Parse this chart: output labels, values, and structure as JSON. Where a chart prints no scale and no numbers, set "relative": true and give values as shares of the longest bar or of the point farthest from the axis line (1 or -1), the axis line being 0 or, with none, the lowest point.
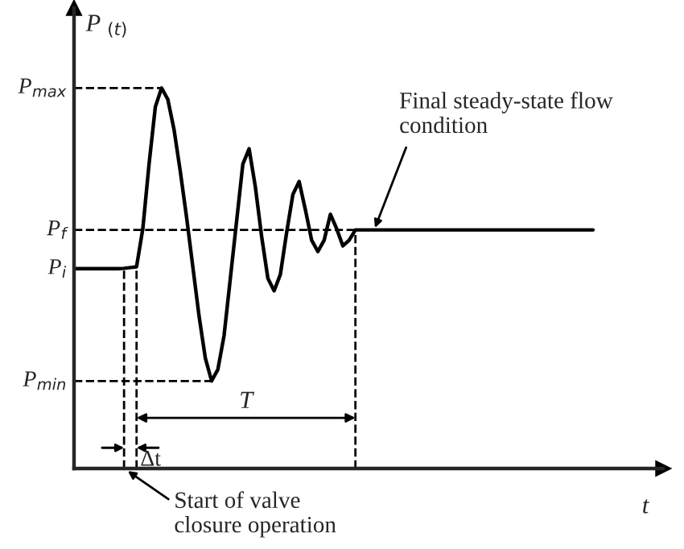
{
  "chart_data": {
    "type": "line",
    "relative": true,
    "xlabel": "t",
    "ylabel": "P $_{(t)}$",
    "grid": false,
    "legend": false,
    "marker": "none",
    "line_style": "solid",
    "categories": [
      null,
      null,
      null,
      null,
      null,
      null,
      null,
      null,
      null,
      null,
      null,
      null,
      null,
      null,
      null,
      null,
      null,
      null,
      null,
      null,
      null,
      null,
      null,
      null,
      null,
      null,
      null,
      null,
      null,
      null,
      null,
      null,
      null,
      null,
      null,
      null,
      null,
      null,
      null,
      null,
      null,
      null,
      null,
      null,
      null,
      null,
      null,
      null,
      null,
      null,
      null,
      null,
      null,
      null,
      null,
      null,
      null,
      null,
      null,
      null,
      null,
      null,
      null,
      null,
      null,
      null,
      null,
      null,
      null,
      null,
      null,
      null,
      null,
      null,
      null,
      null,
      null,
      null,
      null,
      null,
      null,
      null,
      null,
      null
    ],
    "series": [
      {
        "color": "#000000",
        "values": [
          0.525,
          0.525,
          0.525,
          0.525,
          0.525,
          0.525,
          0.525,
          0.525,
          0.526,
          0.528,
          0.53,
          0.63,
          0.8,
          0.95,
          1.0,
          0.97,
          0.89,
          0.78,
          0.66,
          0.53,
          0.4,
          0.29,
          0.23,
          0.26,
          0.35,
          0.5,
          0.65,
          0.8,
          0.84,
          0.74,
          0.61,
          0.5,
          0.467,
          0.51,
          0.62,
          0.72,
          0.754,
          0.68,
          0.6,
          0.57,
          0.6,
          0.668,
          0.63,
          0.585,
          0.6,
          0.627,
          0.627,
          0.627,
          0.627,
          0.627,
          0.627,
          0.627,
          0.627,
          0.627,
          0.627,
          0.627,
          0.627,
          0.627,
          0.627,
          0.627,
          0.627,
          0.627,
          0.627,
          0.627,
          0.627,
          0.627,
          0.627,
          0.627,
          0.627,
          0.627,
          0.627,
          0.627,
          0.627,
          0.627,
          0.627,
          0.627,
          0.627,
          0.627,
          0.627,
          0.627,
          0.627,
          0.627,
          0.627,
          0.627
        ]
      }
    ],
    "ref_lines": [
      {
        "axis": "y",
        "value": 1.0,
        "label": "P$_{max}$",
        "line_style": "dashed",
        "color": "#000000"
      },
      {
        "axis": "y",
        "value": 0.627,
        "label": "P$_{f}$",
        "line_style": "dashed",
        "color": "#000000"
      },
      {
        "axis": "y",
        "value": 0.23,
        "label": "P$_{min}$",
        "line_style": "dashed",
        "color": "#000000"
      }
    ],
    "annotations": [
      "P$_{i}$",
      "T",
      "Δt",
      "Start of valve\nclosure operation",
      "Final steady-state flow\ncondition"
    ]
  }
}
